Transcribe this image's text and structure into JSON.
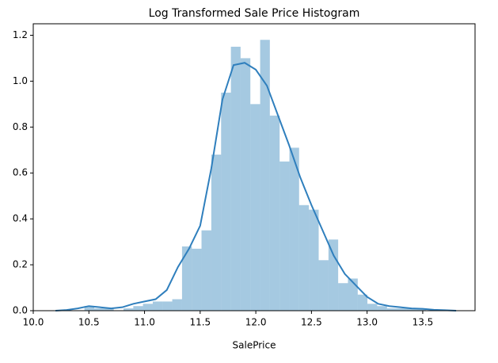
{
  "chart_data": {
    "type": "histogram",
    "title": "Log Transformed Sale Price Histogram",
    "xlabel": "SalePrice",
    "bins": [
      10.46,
      10.548,
      10.635,
      10.723,
      10.811,
      10.899,
      10.986,
      11.074,
      11.162,
      11.249,
      11.337,
      11.425,
      11.512,
      11.6,
      11.688,
      11.776,
      11.863,
      11.951,
      12.039,
      12.126,
      12.214,
      12.302,
      12.389,
      12.477,
      12.565,
      12.653,
      12.74,
      12.828,
      12.916,
      13.003,
      13.091,
      13.179,
      13.266,
      13.354,
      13.442,
      13.53
    ],
    "counts": [
      0.02,
      0.01,
      0.01,
      0,
      0.01,
      0.02,
      0.03,
      0.04,
      0.04,
      0.05,
      0.28,
      0.27,
      0.35,
      0.68,
      0.95,
      1.15,
      1.1,
      0.9,
      1.18,
      0.85,
      0.65,
      0.71,
      0.46,
      0.44,
      0.22,
      0.31,
      0.12,
      0.14,
      0.07,
      0.03,
      0.02,
      0.01,
      0.01,
      0.01,
      0.01
    ],
    "color": "rgba(31,119,180,0.4)",
    "kde": {
      "color": "#2f7fbd",
      "x": [
        10.2,
        10.3,
        10.4,
        10.5,
        10.6,
        10.7,
        10.8,
        10.9,
        11.0,
        11.1,
        11.2,
        11.3,
        11.4,
        11.5,
        11.6,
        11.7,
        11.8,
        11.9,
        12.0,
        12.1,
        12.2,
        12.3,
        12.4,
        12.5,
        12.6,
        12.7,
        12.8,
        12.9,
        13.0,
        13.1,
        13.2,
        13.3,
        13.4,
        13.5,
        13.6,
        13.7,
        13.8
      ],
      "values": [
        0,
        0.003,
        0.01,
        0.02,
        0.015,
        0.01,
        0.015,
        0.03,
        0.04,
        0.05,
        0.09,
        0.19,
        0.27,
        0.37,
        0.62,
        0.92,
        1.07,
        1.08,
        1.05,
        0.98,
        0.85,
        0.72,
        0.58,
        0.46,
        0.35,
        0.24,
        0.16,
        0.11,
        0.06,
        0.03,
        0.02,
        0.015,
        0.01,
        0.008,
        0.004,
        0.002,
        0
      ]
    },
    "xlim": [
      10.0,
      13.97
    ],
    "ylim": [
      0,
      1.25
    ],
    "xticks": [
      {
        "value": 10,
        "label": "10.0"
      },
      10.5,
      {
        "value": 11,
        "label": "11.0"
      },
      11.5,
      {
        "value": 12,
        "label": "12.0"
      },
      12.5,
      {
        "value": 13,
        "label": "13.0"
      },
      13.5
    ],
    "yticks": [
      {
        "value": 0,
        "label": "0.0"
      },
      0.2,
      0.4,
      0.6,
      0.8,
      {
        "value": 1,
        "label": "1.0"
      },
      1.2
    ],
    "grid": false
  }
}
